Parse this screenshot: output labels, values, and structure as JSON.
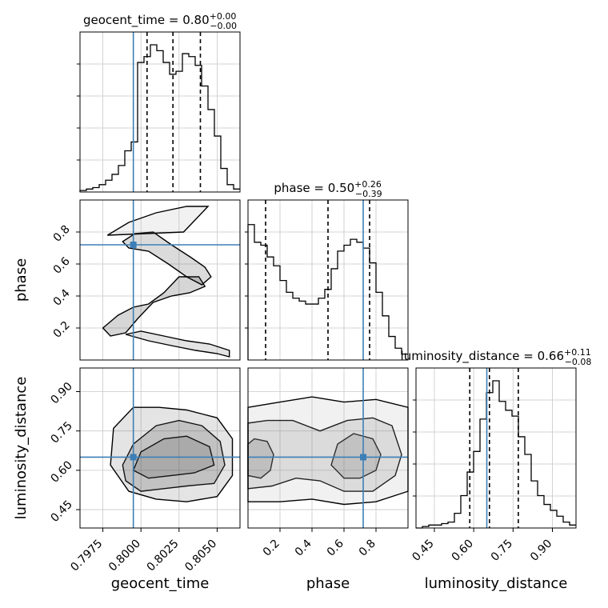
{
  "chart_data": {
    "type": "corner",
    "truth_color": "#3c7fb6",
    "hist_color": "#000000",
    "grid": true,
    "parameters": [
      {
        "name": "geocent_time",
        "label": "geocent_time",
        "range": [
          0.796,
          0.8065
        ],
        "ticks": [
          0.7975,
          0.8,
          0.8025,
          0.805
        ],
        "tick_labels": [
          "0.7975",
          "0.8000",
          "0.8025",
          "0.8050"
        ],
        "truth": 0.7995,
        "quantiles": [
          0.8004,
          0.8021,
          0.8039
        ],
        "title": {
          "prefix": "geocent_time = 0.80",
          "plus": "+0.00",
          "minus": "−0.00"
        },
        "hist": [
          0.01,
          0.02,
          0.03,
          0.05,
          0.08,
          0.12,
          0.18,
          0.28,
          0.34,
          0.88,
          0.92,
          1.0,
          0.96,
          0.88,
          0.8,
          0.82,
          0.94,
          0.92,
          0.86,
          0.72,
          0.56,
          0.38,
          0.16,
          0.05,
          0.02
        ]
      },
      {
        "name": "phase",
        "label": "phase",
        "range": [
          0.0,
          1.0
        ],
        "ticks": [
          0.2,
          0.4,
          0.6,
          0.8
        ],
        "tick_labels": [
          "0.2",
          "0.4",
          "0.6",
          "0.8"
        ],
        "y_range": [
          0.0,
          1.0
        ],
        "y_ticks": [
          0.2,
          0.4,
          0.6,
          0.8
        ],
        "y_tick_labels": [
          "0.2",
          "0.4",
          "0.6",
          "0.8"
        ],
        "truth": 0.72,
        "quantiles": [
          0.11,
          0.5,
          0.76
        ],
        "title": {
          "prefix": "phase = 0.50",
          "plus": "+0.26",
          "minus": "−0.39"
        },
        "hist": [
          0.92,
          0.8,
          0.78,
          0.7,
          0.64,
          0.54,
          0.46,
          0.42,
          0.4,
          0.38,
          0.38,
          0.42,
          0.48,
          0.62,
          0.74,
          0.78,
          0.82,
          0.8,
          0.76,
          0.66,
          0.46,
          0.3,
          0.16,
          0.08,
          0.04
        ]
      },
      {
        "name": "luminosity_distance",
        "label": "luminosity_distance",
        "range": [
          0.38,
          0.99
        ],
        "ticks": [
          0.45,
          0.6,
          0.75,
          0.9
        ],
        "tick_labels": [
          "0.45",
          "0.60",
          "0.75",
          "0.90"
        ],
        "y_range": [
          0.38,
          0.99
        ],
        "y_ticks": [
          0.45,
          0.6,
          0.75,
          0.9
        ],
        "y_tick_labels": [
          "0.45",
          "0.60",
          "0.75",
          "0.90"
        ],
        "truth": 0.65,
        "quantiles": [
          0.585,
          0.66,
          0.77
        ],
        "title": {
          "prefix": "luminosity_distance = 0.66",
          "plus": "+0.11",
          "minus": "−0.08"
        },
        "hist": [
          0.0,
          0.01,
          0.02,
          0.02,
          0.03,
          0.04,
          0.1,
          0.22,
          0.38,
          0.52,
          0.74,
          0.92,
          1.0,
          0.86,
          0.8,
          0.76,
          0.62,
          0.5,
          0.32,
          0.22,
          0.16,
          0.12,
          0.08,
          0.04,
          0.02
        ]
      }
    ],
    "joint": [
      {
        "x": "geocent_time",
        "y": "phase",
        "curves": [
          [
            [
              0.7975,
              0.2
            ],
            [
              0.7985,
              0.28
            ],
            [
              0.7995,
              0.33
            ],
            [
              0.8005,
              0.35
            ],
            [
              0.8015,
              0.42
            ],
            [
              0.8025,
              0.52
            ],
            [
              0.8038,
              0.52
            ],
            [
              0.8042,
              0.46
            ],
            [
              0.8032,
              0.42
            ],
            [
              0.802,
              0.4
            ],
            [
              0.8008,
              0.36
            ],
            [
              0.7998,
              0.26
            ],
            [
              0.799,
              0.17
            ],
            [
              0.798,
              0.15
            ]
          ],
          [
            [
              0.7988,
              0.74
            ],
            [
              0.7996,
              0.79
            ],
            [
              0.8008,
              0.8
            ],
            [
              0.802,
              0.72
            ],
            [
              0.8033,
              0.64
            ],
            [
              0.8042,
              0.58
            ],
            [
              0.8046,
              0.52
            ],
            [
              0.804,
              0.47
            ],
            [
              0.803,
              0.52
            ],
            [
              0.8018,
              0.6
            ],
            [
              0.8005,
              0.68
            ],
            [
              0.7992,
              0.7
            ]
          ],
          [
            [
              0.799,
              0.16
            ],
            [
              0.8005,
              0.12
            ],
            [
              0.802,
              0.09
            ],
            [
              0.8036,
              0.06
            ],
            [
              0.805,
              0.04
            ],
            [
              0.8058,
              0.02
            ],
            [
              0.8058,
              0.06
            ],
            [
              0.8045,
              0.1
            ],
            [
              0.803,
              0.12
            ],
            [
              0.8015,
              0.15
            ],
            [
              0.8,
              0.18
            ]
          ],
          [
            [
              0.7978,
              0.78
            ],
            [
              0.7992,
              0.86
            ],
            [
              0.801,
              0.92
            ],
            [
              0.803,
              0.96
            ],
            [
              0.8044,
              0.96
            ],
            [
              0.8036,
              0.88
            ],
            [
              0.8028,
              0.8
            ]
          ]
        ]
      },
      {
        "x": "geocent_time",
        "y": "luminosity_distance",
        "curves": [
          [
            [
              0.799,
              0.56
            ],
            [
              0.8,
              0.52
            ],
            [
              0.8015,
              0.53
            ],
            [
              0.803,
              0.54
            ],
            [
              0.8048,
              0.55
            ],
            [
              0.8055,
              0.62
            ],
            [
              0.8052,
              0.71
            ],
            [
              0.804,
              0.77
            ],
            [
              0.8025,
              0.79
            ],
            [
              0.801,
              0.77
            ],
            [
              0.7995,
              0.7
            ],
            [
              0.7988,
              0.62
            ]
          ],
          [
            [
              0.7995,
              0.6
            ],
            [
              0.8005,
              0.57
            ],
            [
              0.802,
              0.58
            ],
            [
              0.8035,
              0.59
            ],
            [
              0.8048,
              0.62
            ],
            [
              0.8045,
              0.69
            ],
            [
              0.803,
              0.73
            ],
            [
              0.8015,
              0.72
            ],
            [
              0.8,
              0.67
            ]
          ],
          [
            [
              0.7982,
              0.76
            ],
            [
              0.7995,
              0.84
            ],
            [
              0.8012,
              0.84
            ],
            [
              0.803,
              0.83
            ],
            [
              0.805,
              0.8
            ],
            [
              0.806,
              0.72
            ],
            [
              0.806,
              0.58
            ],
            [
              0.805,
              0.5
            ],
            [
              0.803,
              0.48
            ],
            [
              0.801,
              0.49
            ],
            [
              0.7992,
              0.52
            ],
            [
              0.798,
              0.62
            ]
          ]
        ]
      },
      {
        "x": "phase",
        "y": "luminosity_distance",
        "curves": [
          [
            [
              0.0,
              0.58
            ],
            [
              0.08,
              0.57
            ],
            [
              0.14,
              0.6
            ],
            [
              0.16,
              0.66
            ],
            [
              0.12,
              0.71
            ],
            [
              0.04,
              0.72
            ],
            [
              0.0,
              0.7
            ]
          ],
          [
            [
              0.52,
              0.62
            ],
            [
              0.6,
              0.57
            ],
            [
              0.7,
              0.57
            ],
            [
              0.8,
              0.6
            ],
            [
              0.83,
              0.66
            ],
            [
              0.78,
              0.72
            ],
            [
              0.66,
              0.74
            ],
            [
              0.56,
              0.7
            ]
          ],
          [
            [
              0.0,
              0.53
            ],
            [
              0.15,
              0.54
            ],
            [
              0.3,
              0.57
            ],
            [
              0.45,
              0.56
            ],
            [
              0.6,
              0.52
            ],
            [
              0.78,
              0.52
            ],
            [
              0.92,
              0.58
            ],
            [
              0.96,
              0.66
            ],
            [
              0.9,
              0.77
            ],
            [
              0.78,
              0.8
            ],
            [
              0.62,
              0.79
            ],
            [
              0.45,
              0.75
            ],
            [
              0.28,
              0.79
            ],
            [
              0.12,
              0.79
            ],
            [
              0.0,
              0.78
            ]
          ],
          [
            [
              0.0,
              0.48
            ],
            [
              0.2,
              0.48
            ],
            [
              0.4,
              0.49
            ],
            [
              0.6,
              0.47
            ],
            [
              0.8,
              0.48
            ],
            [
              1.0,
              0.52
            ],
            [
              1.0,
              0.84
            ],
            [
              0.8,
              0.87
            ],
            [
              0.6,
              0.86
            ],
            [
              0.4,
              0.88
            ],
            [
              0.2,
              0.86
            ],
            [
              0.0,
              0.84
            ]
          ]
        ]
      }
    ]
  }
}
